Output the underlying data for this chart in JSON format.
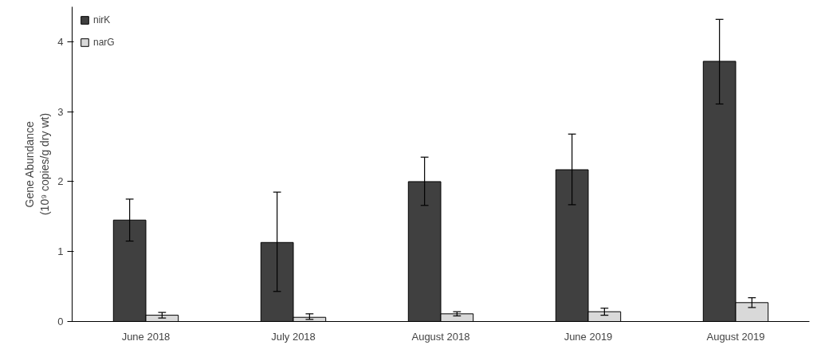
{
  "chart_data": {
    "type": "bar",
    "ylabel": "Gene Abundance\n(10⁹ copies/g dry wt)",
    "categories": [
      "June 2018",
      "July 2018",
      "August 2018",
      "June 2019",
      "August 2019"
    ],
    "series": [
      {
        "name": "nirK",
        "color": "#404040",
        "values": [
          1.45,
          1.13,
          2.0,
          2.17,
          3.72
        ],
        "errors": [
          [
            1.15,
            1.75
          ],
          [
            0.43,
            1.85
          ],
          [
            1.66,
            2.35
          ],
          [
            1.67,
            2.68
          ],
          [
            3.11,
            4.32
          ]
        ]
      },
      {
        "name": "narG",
        "color": "#d9d9d9",
        "values": [
          0.09,
          0.06,
          0.11,
          0.14,
          0.27
        ],
        "errors": [
          [
            0.05,
            0.13
          ],
          [
            0.03,
            0.11
          ],
          [
            0.08,
            0.14
          ],
          [
            0.09,
            0.19
          ],
          [
            0.2,
            0.34
          ]
        ]
      }
    ],
    "ylim": [
      0,
      4.5
    ],
    "yticks": [
      0,
      1,
      2,
      3,
      4
    ],
    "grid": false,
    "legend": "top left"
  }
}
